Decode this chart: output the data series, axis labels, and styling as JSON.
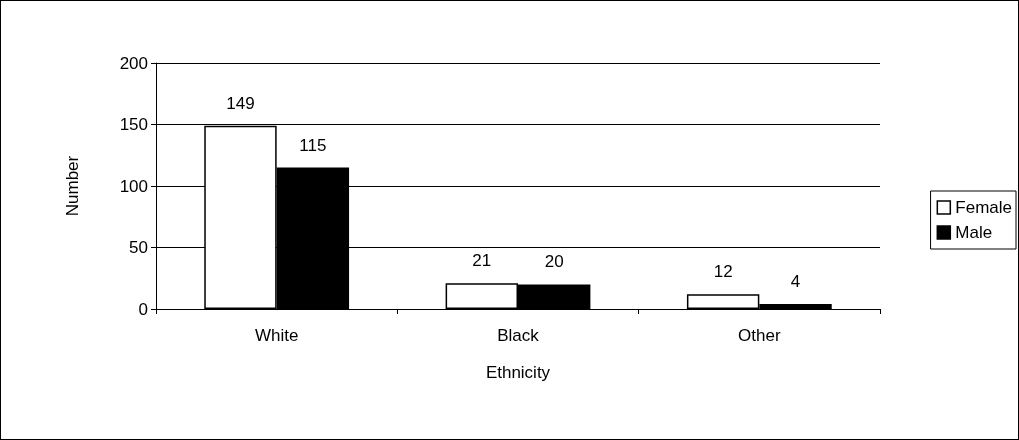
{
  "chart_data": {
    "type": "bar",
    "xlabel": "Ethnicity",
    "ylabel": "Number",
    "categories": [
      "White",
      "Black",
      "Other"
    ],
    "series": [
      {
        "name": "Female",
        "color": "#ffffff",
        "values": [
          149,
          21,
          12
        ]
      },
      {
        "name": "Male",
        "color": "#000000",
        "values": [
          115,
          20,
          4
        ]
      }
    ],
    "ylim": [
      0,
      200
    ],
    "yticks": [
      0,
      50,
      100,
      150,
      200
    ],
    "grid": "y",
    "legend": "right",
    "data_labels": true
  }
}
